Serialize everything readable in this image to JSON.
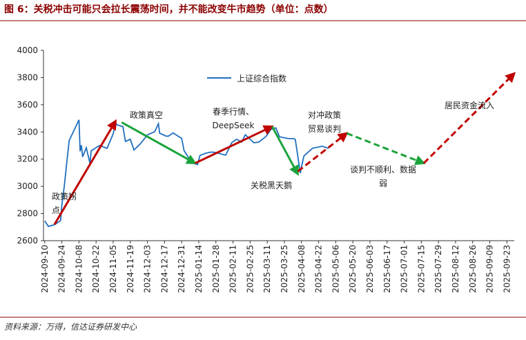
{
  "chart_data": {
    "type": "line",
    "title": "图 6：关税冲击可能只会拉长震荡时间，并不能改变牛市趋势（单位：点数）",
    "source": "资料来源：万得，信达证券研发中心",
    "xlim": [
      "2024-09-09",
      "2025-09-29"
    ],
    "xticks": [
      "2024-09-10",
      "2024-09-24",
      "2024-10-08",
      "2024-10-22",
      "2024-11-05",
      "2024-11-19",
      "2024-12-03",
      "2024-12-17",
      "2024-12-31",
      "2025-01-14",
      "2025-01-28",
      "2025-02-11",
      "2025-02-25",
      "2025-03-11",
      "2025-03-25",
      "2025-04-08",
      "2025-04-22",
      "2025-05-06",
      "2025-05-20",
      "2025-06-03",
      "2025-06-17",
      "2025-07-01",
      "2025-07-15",
      "2025-07-29",
      "2025-08-12",
      "2025-08-26",
      "2025-09-09",
      "2025-09-23"
    ],
    "ylim": [
      2600,
      4000
    ],
    "yticks": [
      2600,
      2800,
      3000,
      3200,
      3400,
      3600,
      3800,
      4000
    ],
    "grid": false,
    "legend": "top",
    "series": [
      {
        "name": "上证综合指数",
        "color": "#1f6fbf",
        "x": [
          "2024-09-10",
          "2024-09-13",
          "2024-09-18",
          "2024-09-23",
          "2024-09-24",
          "2024-09-26",
          "2024-09-27",
          "2024-09-30",
          "2024-10-08",
          "2024-10-09",
          "2024-10-10",
          "2024-10-11",
          "2024-10-14",
          "2024-10-17",
          "2024-10-18",
          "2024-10-22",
          "2024-10-25",
          "2024-10-31",
          "2024-11-05",
          "2024-11-07",
          "2024-11-08",
          "2024-11-13",
          "2024-11-15",
          "2024-11-19",
          "2024-11-22",
          "2024-11-27",
          "2024-12-03",
          "2024-12-09",
          "2024-12-10",
          "2024-12-12",
          "2024-12-13",
          "2024-12-18",
          "2024-12-20",
          "2024-12-24",
          "2024-12-31",
          "2025-01-02",
          "2025-01-06",
          "2025-01-10",
          "2025-01-13",
          "2025-01-15",
          "2025-01-20",
          "2025-01-24",
          "2025-01-27",
          "2025-02-05",
          "2025-02-10",
          "2025-02-14",
          "2025-02-18",
          "2025-02-21",
          "2025-02-28",
          "2025-03-04",
          "2025-03-10",
          "2025-03-14",
          "2025-03-18",
          "2025-03-21",
          "2025-03-28",
          "2025-04-02",
          "2025-04-03",
          "2025-04-07",
          "2025-04-08",
          "2025-04-10",
          "2025-04-17",
          "2025-04-25",
          "2025-04-30"
        ],
        "values": [
          2745,
          2705,
          2717,
          2748,
          2863,
          3000,
          3087,
          3336,
          3489,
          3258,
          3302,
          3217,
          3284,
          3169,
          3261,
          3285,
          3300,
          3279,
          3386,
          3470,
          3452,
          3439,
          3330,
          3346,
          3267,
          3310,
          3378,
          3402,
          3422,
          3461,
          3391,
          3370,
          3368,
          3393,
          3352,
          3262,
          3206,
          3168,
          3160,
          3227,
          3244,
          3252,
          3250,
          3229,
          3322,
          3346,
          3325,
          3379,
          3321,
          3325,
          3367,
          3419,
          3430,
          3364,
          3351,
          3350,
          3342,
          3097,
          3145,
          3223,
          3280,
          3295,
          3279
        ]
      }
    ],
    "arrows": [
      {
        "x": [
          "2024-09-18",
          "2024-11-07"
        ],
        "y": [
          2720,
          3480
        ],
        "color": "#c00000",
        "dashed": false
      },
      {
        "x": [
          "2024-11-12",
          "2025-01-11"
        ],
        "y": [
          3470,
          3170
        ],
        "color": "#1aa33a",
        "dashed": false
      },
      {
        "x": [
          "2025-01-11",
          "2025-03-15"
        ],
        "y": [
          3170,
          3440
        ],
        "color": "#c00000",
        "dashed": false
      },
      {
        "x": [
          "2025-03-15",
          "2025-04-05"
        ],
        "y": [
          3440,
          3090
        ],
        "color": "#1aa33a",
        "dashed": false
      },
      {
        "x": [
          "2025-04-05",
          "2025-05-15"
        ],
        "y": [
          3110,
          3390
        ],
        "color": "#c00000",
        "dashed": true
      },
      {
        "x": [
          "2025-05-15",
          "2025-07-17"
        ],
        "y": [
          3390,
          3170
        ],
        "color": "#1aa33a",
        "dashed": true
      },
      {
        "x": [
          "2025-07-17",
          "2025-09-29"
        ],
        "y": [
          3170,
          3830
        ],
        "color": "#c00000",
        "dashed": true
      }
    ],
    "annotations": [
      {
        "lines": [
          "政策拐",
          "点"
        ],
        "color": "#c00000"
      },
      {
        "lines": [
          "政策真空"
        ],
        "color": "#1aa33a"
      },
      {
        "lines": [
          "春季行情、",
          "DeepSeek"
        ],
        "color": "#c00000"
      },
      {
        "lines": [
          "关税黑天鹅"
        ],
        "color": "#1aa33a"
      },
      {
        "lines": [
          "对冲政策",
          "贸易谈判"
        ],
        "color": "#c00000"
      },
      {
        "lines": [
          "谈判不顺利、数据",
          "弱"
        ],
        "color": "#1aa33a"
      },
      {
        "lines": [
          "居民资金流入"
        ],
        "color": "#c00000"
      }
    ]
  }
}
